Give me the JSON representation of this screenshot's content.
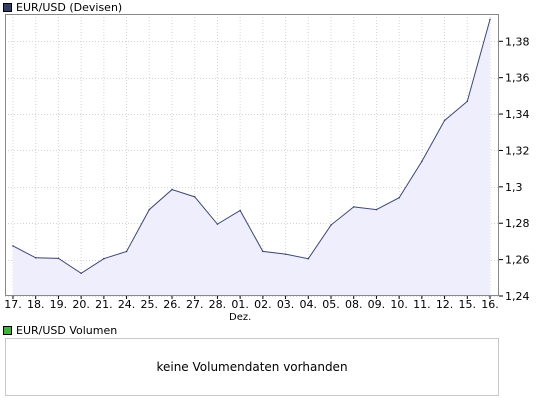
{
  "chart_data": {
    "type": "area",
    "title": "EUR/USD (Devisen)",
    "categories": [
      "17.",
      "18.",
      "19.",
      "20.",
      "21.",
      "24.",
      "25.",
      "26.",
      "27.",
      "28.",
      "01.",
      "02.",
      "03.",
      "04.",
      "05.",
      "08.",
      "09.",
      "10.",
      "11.",
      "12.",
      "15.",
      "16."
    ],
    "month_label": "Dez.",
    "values": [
      1.2675,
      1.261,
      1.2607,
      1.2525,
      1.2605,
      1.2645,
      1.2875,
      1.2985,
      1.2945,
      1.2795,
      1.287,
      1.2645,
      1.263,
      1.2605,
      1.279,
      1.289,
      1.2875,
      1.294,
      1.314,
      1.3365,
      1.347,
      1.392
    ],
    "ylim": [
      1.24,
      1.395
    ],
    "yticks": [
      1.24,
      1.26,
      1.28,
      1.3,
      1.32,
      1.34,
      1.36,
      1.38
    ],
    "ytick_labels": [
      "1,24",
      "1,26",
      "1,28",
      "1,3",
      "1,32",
      "1,34",
      "1,36",
      "1,38"
    ],
    "grid": true,
    "colors": {
      "line": "#3c4674",
      "fill": "#eeeefc",
      "grid": "#d4d4d4",
      "axis": "#888888"
    },
    "legend": "top-left"
  },
  "legend_main": {
    "label": "EUR/USD (Devisen)",
    "color": "#333c64"
  },
  "legend_volume": {
    "label": "EUR/USD Volumen",
    "color": "#3cb43c"
  },
  "volume": {
    "message": "keine Volumendaten vorhanden"
  }
}
